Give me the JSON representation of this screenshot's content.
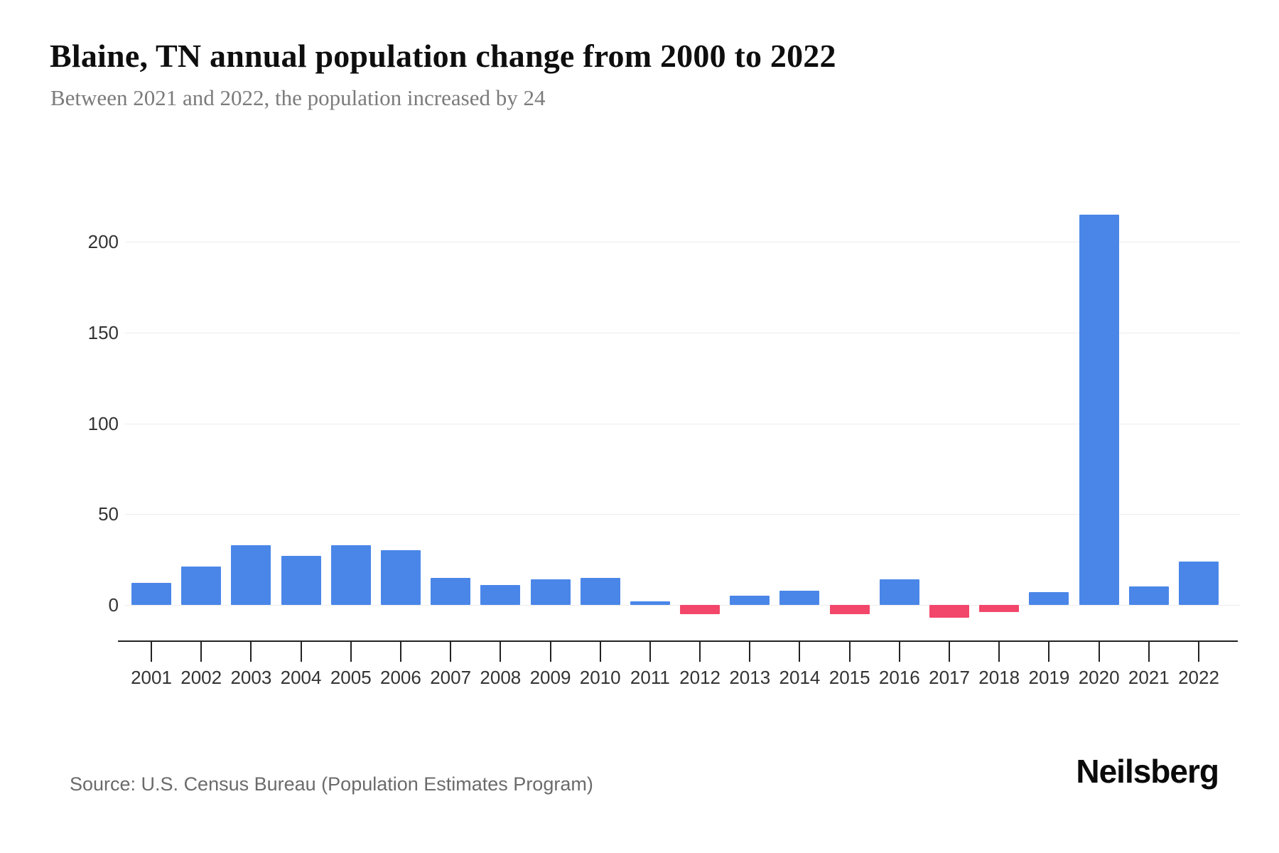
{
  "header": {
    "title": "Blaine, TN annual population change from 2000 to 2022",
    "subtitle": "Between 2021 and 2022, the population increased by 24"
  },
  "footer": {
    "source": "Source: U.S. Census Bureau (Population Estimates Program)",
    "brand": "Neilsberg"
  },
  "colors": {
    "positive_bar": "#4A86E8",
    "negative_bar": "#F2476A",
    "gridline": "#ECECEC",
    "axis_line": "#222222",
    "tick_label": "#333333",
    "subtitle_text": "#7B7B7B",
    "source_text": "#6B6B6B"
  },
  "chart_data": {
    "type": "bar",
    "title": "Blaine, TN annual population change from 2000 to 2022",
    "subtitle": "Between 2021 and 2022, the population increased by 24",
    "categories": [
      "2001",
      "2002",
      "2003",
      "2004",
      "2005",
      "2006",
      "2007",
      "2008",
      "2009",
      "2010",
      "2011",
      "2012",
      "2013",
      "2014",
      "2015",
      "2016",
      "2017",
      "2018",
      "2019",
      "2020",
      "2021",
      "2022"
    ],
    "values": [
      12,
      21,
      33,
      27,
      33,
      30,
      15,
      11,
      14,
      15,
      2,
      -5,
      5,
      8,
      -5,
      14,
      -7,
      -4,
      7,
      215,
      10,
      24
    ],
    "xlabel": "",
    "ylabel": "",
    "y_ticks": [
      0,
      50,
      100,
      150,
      200
    ],
    "ylim": [
      -20,
      227
    ],
    "grid": true,
    "legend_position": "none",
    "positive_color": "#4A86E8",
    "negative_color": "#F2476A"
  }
}
